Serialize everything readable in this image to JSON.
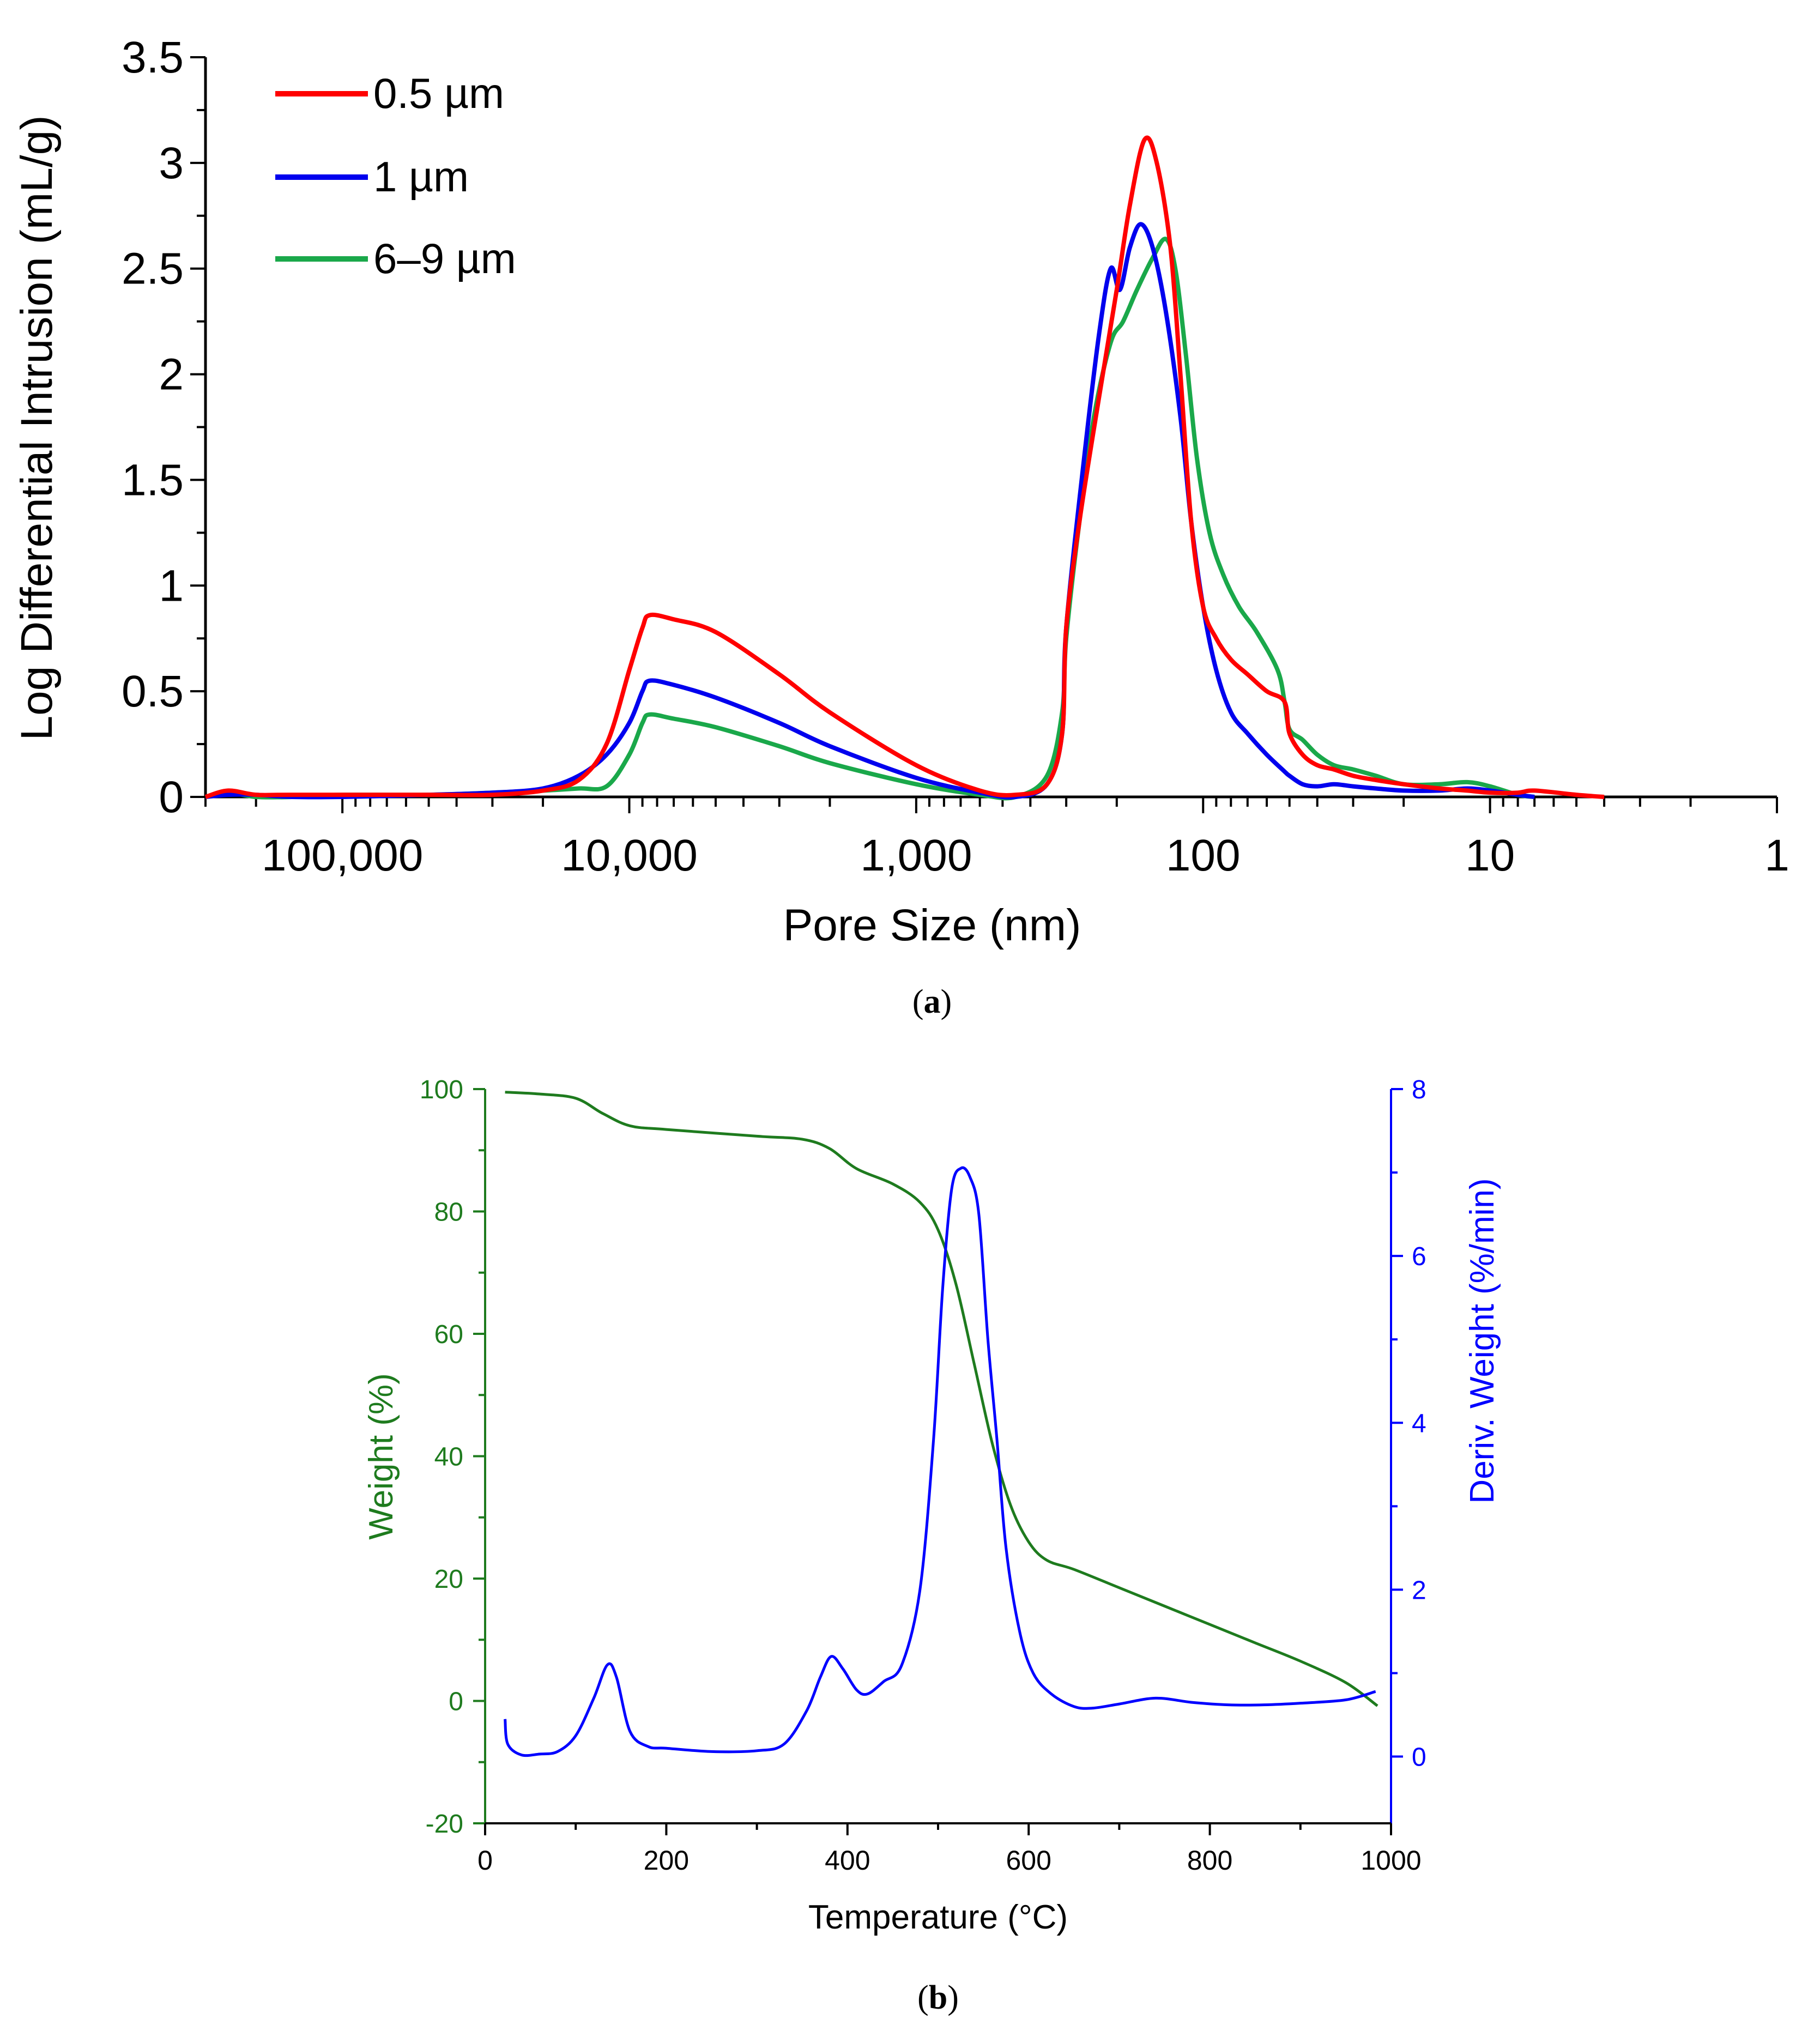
{
  "chart_data": [
    {
      "type": "line",
      "panel_label": "a",
      "xlabel": "Pore Size (nm)",
      "ylabel": "Log Differential Intrusion (mL/g)",
      "x_scale": "log",
      "x_reversed": true,
      "xlim": [
        300000,
        1
      ],
      "ylim": [
        0,
        3.5
      ],
      "x_tick_labels": [
        {
          "value": 100000,
          "label": "100,000"
        },
        {
          "value": 10000,
          "label": "10,000"
        },
        {
          "value": 1000,
          "label": "1,000"
        },
        {
          "value": 100,
          "label": "100"
        },
        {
          "value": 10,
          "label": "10"
        },
        {
          "value": 1,
          "label": "1"
        }
      ],
      "y_tick_labels": [
        {
          "value": 0,
          "label": "0"
        },
        {
          "value": 0.5,
          "label": "0.5"
        },
        {
          "value": 1,
          "label": "1"
        },
        {
          "value": 1.5,
          "label": "1.5"
        },
        {
          "value": 2,
          "label": "2"
        },
        {
          "value": 2.5,
          "label": "2.5"
        },
        {
          "value": 3,
          "label": "3"
        },
        {
          "value": 3.5,
          "label": "3.5"
        }
      ],
      "legend_position": "top-left",
      "series": [
        {
          "name": "0.5 µm",
          "color": "#ff0000",
          "points": [
            [
              300000,
              0
            ],
            [
              250000,
              0.03
            ],
            [
              200000,
              0.01
            ],
            [
              150000,
              0.01
            ],
            [
              50000,
              0.01
            ],
            [
              30000,
              0.01
            ],
            [
              20000,
              0.03
            ],
            [
              15000,
              0.08
            ],
            [
              12000,
              0.25
            ],
            [
              10000,
              0.6
            ],
            [
              9000,
              0.8
            ],
            [
              8500,
              0.86
            ],
            [
              7000,
              0.84
            ],
            [
              5000,
              0.78
            ],
            [
              3000,
              0.58
            ],
            [
              2000,
              0.4
            ],
            [
              1000,
              0.15
            ],
            [
              600,
              0.03
            ],
            [
              450,
              0.01
            ],
            [
              350,
              0.06
            ],
            [
              310,
              0.3
            ],
            [
              300,
              0.8
            ],
            [
              270,
              1.3
            ],
            [
              230,
              1.9
            ],
            [
              200,
              2.4
            ],
            [
              180,
              2.8
            ],
            [
              160,
              3.11
            ],
            [
              145,
              3.0
            ],
            [
              130,
              2.6
            ],
            [
              120,
              2.0
            ],
            [
              110,
              1.3
            ],
            [
              100,
              0.9
            ],
            [
              90,
              0.75
            ],
            [
              80,
              0.65
            ],
            [
              70,
              0.58
            ],
            [
              60,
              0.5
            ],
            [
              52,
              0.45
            ],
            [
              50,
              0.3
            ],
            [
              45,
              0.2
            ],
            [
              40,
              0.15
            ],
            [
              35,
              0.13
            ],
            [
              30,
              0.1
            ],
            [
              25,
              0.08
            ],
            [
              20,
              0.06
            ],
            [
              15,
              0.04
            ],
            [
              12,
              0.03
            ],
            [
              10,
              0.02
            ],
            [
              8,
              0.02
            ],
            [
              7,
              0.03
            ],
            [
              5,
              0.01
            ],
            [
              4,
              0
            ]
          ]
        },
        {
          "name": "1 µm",
          "color": "#0000ee",
          "points": [
            [
              300000,
              0
            ],
            [
              250000,
              0.01
            ],
            [
              200000,
              0.01
            ],
            [
              150000,
              0
            ],
            [
              100000,
              0
            ],
            [
              50000,
              0.01
            ],
            [
              30000,
              0.02
            ],
            [
              20000,
              0.04
            ],
            [
              15000,
              0.1
            ],
            [
              12000,
              0.2
            ],
            [
              10000,
              0.35
            ],
            [
              9000,
              0.5
            ],
            [
              8500,
              0.55
            ],
            [
              7000,
              0.53
            ],
            [
              5000,
              0.47
            ],
            [
              3000,
              0.35
            ],
            [
              2000,
              0.24
            ],
            [
              1000,
              0.09
            ],
            [
              600,
              0.02
            ],
            [
              450,
              0
            ],
            [
              350,
              0.06
            ],
            [
              310,
              0.3
            ],
            [
              300,
              0.8
            ],
            [
              260,
              1.6
            ],
            [
              230,
              2.2
            ],
            [
              210,
              2.5
            ],
            [
              195,
              2.4
            ],
            [
              180,
              2.6
            ],
            [
              165,
              2.71
            ],
            [
              150,
              2.6
            ],
            [
              135,
              2.3
            ],
            [
              120,
              1.8
            ],
            [
              110,
              1.3
            ],
            [
              100,
              0.9
            ],
            [
              90,
              0.6
            ],
            [
              80,
              0.4
            ],
            [
              70,
              0.3
            ],
            [
              60,
              0.2
            ],
            [
              52,
              0.12
            ],
            [
              50,
              0.1
            ],
            [
              45,
              0.06
            ],
            [
              40,
              0.05
            ],
            [
              35,
              0.06
            ],
            [
              30,
              0.05
            ],
            [
              25,
              0.04
            ],
            [
              20,
              0.03
            ],
            [
              15,
              0.03
            ],
            [
              12,
              0.04
            ],
            [
              10,
              0.03
            ],
            [
              8,
              0.01
            ],
            [
              7,
              0
            ]
          ]
        },
        {
          "name": "6–9 µm",
          "color": "#1aa84a",
          "points": [
            [
              300000,
              0
            ],
            [
              250000,
              0.02
            ],
            [
              200000,
              0
            ],
            [
              150000,
              0
            ],
            [
              100000,
              0.01
            ],
            [
              50000,
              0.01
            ],
            [
              30000,
              0.02
            ],
            [
              20000,
              0.03
            ],
            [
              15000,
              0.04
            ],
            [
              12000,
              0.05
            ],
            [
              10000,
              0.2
            ],
            [
              9000,
              0.35
            ],
            [
              8500,
              0.39
            ],
            [
              7000,
              0.37
            ],
            [
              5000,
              0.33
            ],
            [
              3000,
              0.24
            ],
            [
              2000,
              0.16
            ],
            [
              1000,
              0.06
            ],
            [
              600,
              0.01
            ],
            [
              450,
              0
            ],
            [
              350,
              0.1
            ],
            [
              310,
              0.4
            ],
            [
              300,
              0.75
            ],
            [
              270,
              1.3
            ],
            [
              240,
              1.8
            ],
            [
              210,
              2.15
            ],
            [
              190,
              2.25
            ],
            [
              170,
              2.4
            ],
            [
              150,
              2.55
            ],
            [
              135,
              2.64
            ],
            [
              125,
              2.5
            ],
            [
              115,
              2.1
            ],
            [
              105,
              1.6
            ],
            [
              95,
              1.25
            ],
            [
              85,
              1.05
            ],
            [
              75,
              0.9
            ],
            [
              65,
              0.78
            ],
            [
              55,
              0.6
            ],
            [
              52,
              0.45
            ],
            [
              50,
              0.32
            ],
            [
              45,
              0.27
            ],
            [
              40,
              0.2
            ],
            [
              35,
              0.15
            ],
            [
              30,
              0.13
            ],
            [
              25,
              0.1
            ],
            [
              20,
              0.06
            ],
            [
              15,
              0.06
            ],
            [
              12,
              0.07
            ],
            [
              10,
              0.05
            ],
            [
              8,
              0.01
            ],
            [
              7,
              0
            ]
          ]
        }
      ]
    },
    {
      "type": "line",
      "panel_label": "b",
      "xlabel": "Temperature (°C)",
      "ylabel": "Weight (%)",
      "y2label": "Deriv. Weight (%/min)",
      "xlim": [
        0,
        1000
      ],
      "ylim": [
        -20,
        100
      ],
      "y2lim": [
        -0.8,
        8
      ],
      "x_ticks": [
        "0",
        "200",
        "400",
        "600",
        "800",
        "1000"
      ],
      "y_ticks": [
        "-20",
        "0",
        "20",
        "40",
        "60",
        "80",
        "100"
      ],
      "y2_ticks": [
        "0",
        "2",
        "4",
        "6",
        "8"
      ],
      "series": [
        {
          "name": "Weight",
          "axis": "left",
          "color": "#1e7b1e",
          "points": [
            [
              22,
              99.5
            ],
            [
              60,
              99.2
            ],
            [
              100,
              98.5
            ],
            [
              130,
              96
            ],
            [
              160,
              94
            ],
            [
              200,
              93.4
            ],
            [
              300,
              92.3
            ],
            [
              350,
              91.8
            ],
            [
              380,
              90.3
            ],
            [
              410,
              87
            ],
            [
              450,
              84.5
            ],
            [
              480,
              81.5
            ],
            [
              500,
              77
            ],
            [
              520,
              68
            ],
            [
              540,
              55
            ],
            [
              560,
              42
            ],
            [
              580,
              32
            ],
            [
              600,
              26
            ],
            [
              620,
              23
            ],
            [
              650,
              21.5
            ],
            [
              700,
              18.5
            ],
            [
              750,
              15.5
            ],
            [
              800,
              12.5
            ],
            [
              850,
              9.5
            ],
            [
              900,
              6.5
            ],
            [
              950,
              3
            ],
            [
              985,
              -0.8
            ]
          ]
        },
        {
          "name": "Deriv. Weight",
          "axis": "right",
          "color": "#0000ff",
          "points": [
            [
              22,
              0.45
            ],
            [
              25,
              0.15
            ],
            [
              40,
              0.02
            ],
            [
              60,
              0.03
            ],
            [
              80,
              0.06
            ],
            [
              100,
              0.25
            ],
            [
              120,
              0.7
            ],
            [
              135,
              1.1
            ],
            [
              145,
              0.95
            ],
            [
              160,
              0.3
            ],
            [
              180,
              0.12
            ],
            [
              200,
              0.1
            ],
            [
              250,
              0.06
            ],
            [
              300,
              0.07
            ],
            [
              330,
              0.15
            ],
            [
              355,
              0.55
            ],
            [
              370,
              0.95
            ],
            [
              382,
              1.2
            ],
            [
              395,
              1.05
            ],
            [
              410,
              0.8
            ],
            [
              422,
              0.75
            ],
            [
              440,
              0.9
            ],
            [
              460,
              1.1
            ],
            [
              480,
              2.0
            ],
            [
              495,
              3.8
            ],
            [
              505,
              5.6
            ],
            [
              515,
              6.8
            ],
            [
              525,
              7.05
            ],
            [
              535,
              6.95
            ],
            [
              545,
              6.5
            ],
            [
              555,
              5.0
            ],
            [
              565,
              3.8
            ],
            [
              575,
              2.5
            ],
            [
              590,
              1.5
            ],
            [
              605,
              1.0
            ],
            [
              625,
              0.75
            ],
            [
              650,
              0.6
            ],
            [
              670,
              0.58
            ],
            [
              700,
              0.63
            ],
            [
              740,
              0.7
            ],
            [
              780,
              0.65
            ],
            [
              820,
              0.62
            ],
            [
              860,
              0.62
            ],
            [
              900,
              0.64
            ],
            [
              950,
              0.68
            ],
            [
              983,
              0.78
            ]
          ]
        }
      ]
    }
  ]
}
